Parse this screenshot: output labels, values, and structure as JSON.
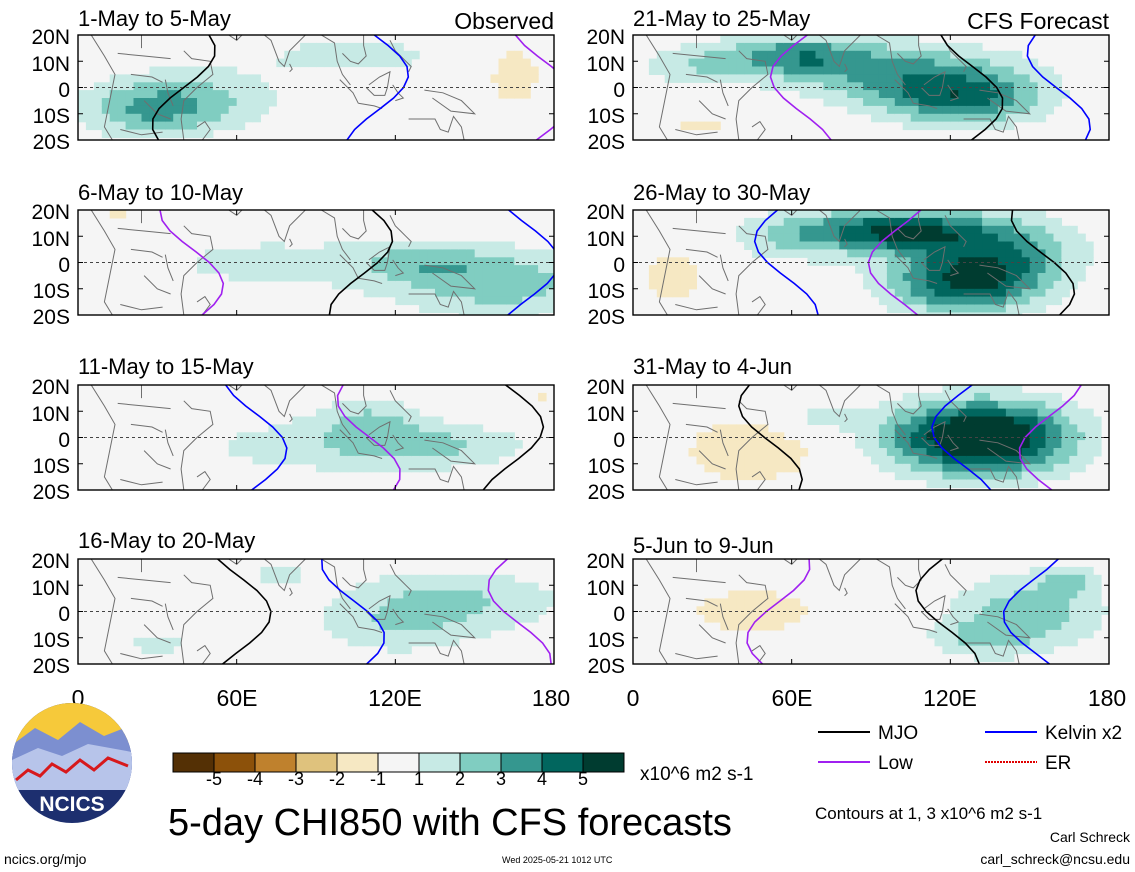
{
  "panel_titles": [
    "1-May to 5-May",
    "6-May to 10-May",
    "11-May to 15-May",
    "16-May to 20-May",
    "21-May to 25-May",
    "26-May to 30-May",
    "31-May to 4-Jun",
    "5-Jun to 9-Jun"
  ],
  "tags": {
    "observed": "Observed",
    "forecast": "CFS Forecast"
  },
  "lat_ticks": [
    "20N",
    "10N",
    "0",
    "10S",
    "20S"
  ],
  "lon_ticks": [
    "0",
    "60E",
    "120E",
    "180"
  ],
  "colorbar": {
    "labels": [
      "-5",
      "-4",
      "-3",
      "-2",
      "-1",
      "1",
      "2",
      "3",
      "4",
      "5"
    ],
    "colors": [
      "#543005",
      "#8c510a",
      "#bf812d",
      "#dfc27d",
      "#f6e8c3",
      "#f5f5f5",
      "#c7eae5",
      "#80cdc1",
      "#35978f",
      "#01665e",
      "#003c30"
    ],
    "unit": "x10^6 m2 s-1"
  },
  "legend": [
    {
      "label": "MJO",
      "color": "#000000"
    },
    {
      "label": "Kelvin x2",
      "color": "#0000ff"
    },
    {
      "label": "Low",
      "color": "#a020f0"
    },
    {
      "label": "ER",
      "color": "#e00000"
    }
  ],
  "main_title": "5-day CHI850 with CFS forecasts",
  "contours_note": "Contours at 1, 3 x10^6 m2 s-1",
  "author": "Carl Schreck",
  "email": "carl_schreck@ncsu.edu",
  "website": "ncics.org/mjo",
  "timestamp": "Wed 2025-05-21 1012 UTC",
  "logo_text": "NCICS",
  "chart_data": {
    "type": "heatmap",
    "variable": "CHI850",
    "x_range": [
      0,
      180
    ],
    "y_range": [
      -20,
      20
    ],
    "contour_levels": [
      1,
      3
    ],
    "panels": [
      {
        "period": "1-May to 5-May",
        "source": "Observed",
        "blobs": [
          [
            40,
            -5,
            35,
            12,
            2.5
          ],
          [
            105,
            12,
            40,
            8,
            1.5
          ],
          [
            25,
            -10,
            25,
            10,
            1.5
          ],
          [
            165,
            5,
            10,
            12,
            -2
          ]
        ]
      },
      {
        "period": "6-May to 10-May",
        "source": "Observed",
        "blobs": [
          [
            160,
            -8,
            40,
            14,
            2.5
          ],
          [
            70,
            0,
            60,
            15,
            1.2
          ],
          [
            130,
            0,
            25,
            8,
            1.5
          ],
          [
            15,
            18,
            6,
            3,
            -1.5
          ]
        ]
      },
      {
        "period": "11-May to 15-May",
        "source": "Observed",
        "blobs": [
          [
            95,
            -3,
            60,
            12,
            1.5
          ],
          [
            135,
            -3,
            35,
            8,
            1.5
          ],
          [
            110,
            8,
            20,
            8,
            1.5
          ],
          [
            175,
            15,
            5,
            3,
            -1.2
          ]
        ]
      },
      {
        "period": "16-May to 20-May",
        "source": "Observed",
        "blobs": [
          [
            140,
            4,
            45,
            12,
            2.2
          ],
          [
            120,
            -8,
            30,
            10,
            1.3
          ],
          [
            75,
            14,
            15,
            5,
            1.2
          ],
          [
            30,
            -12,
            20,
            8,
            1.2
          ]
        ]
      },
      {
        "period": "21-May to 25-May",
        "source": "CFS Forecast",
        "blobs": [
          [
            60,
            12,
            30,
            8,
            3.2
          ],
          [
            105,
            5,
            45,
            12,
            3.0
          ],
          [
            125,
            -5,
            30,
            10,
            3.5
          ],
          [
            20,
            8,
            20,
            8,
            1.5
          ],
          [
            25,
            -15,
            20,
            5,
            -1.2
          ]
        ]
      },
      {
        "period": "26-May to 30-May",
        "source": "CFS Forecast",
        "blobs": [
          [
            100,
            12,
            30,
            8,
            5.0
          ],
          [
            125,
            -8,
            30,
            12,
            4.5
          ],
          [
            140,
            5,
            30,
            14,
            3.0
          ],
          [
            60,
            10,
            25,
            10,
            2.0
          ],
          [
            15,
            -5,
            15,
            12,
            -1.5
          ]
        ]
      },
      {
        "period": "31-May to 4-Jun",
        "source": "CFS Forecast",
        "blobs": [
          [
            140,
            0,
            30,
            14,
            5.0
          ],
          [
            115,
            0,
            30,
            14,
            3.0
          ],
          [
            45,
            -5,
            30,
            14,
            -1.8
          ],
          [
            70,
            8,
            15,
            6,
            1.5
          ]
        ]
      },
      {
        "period": "5-Jun to 9-Jun",
        "source": "CFS Forecast",
        "blobs": [
          [
            150,
            0,
            30,
            15,
            2.5
          ],
          [
            130,
            -10,
            20,
            8,
            1.5
          ],
          [
            45,
            0,
            40,
            14,
            -1.3
          ],
          [
            165,
            12,
            10,
            6,
            1.5
          ]
        ]
      }
    ]
  }
}
